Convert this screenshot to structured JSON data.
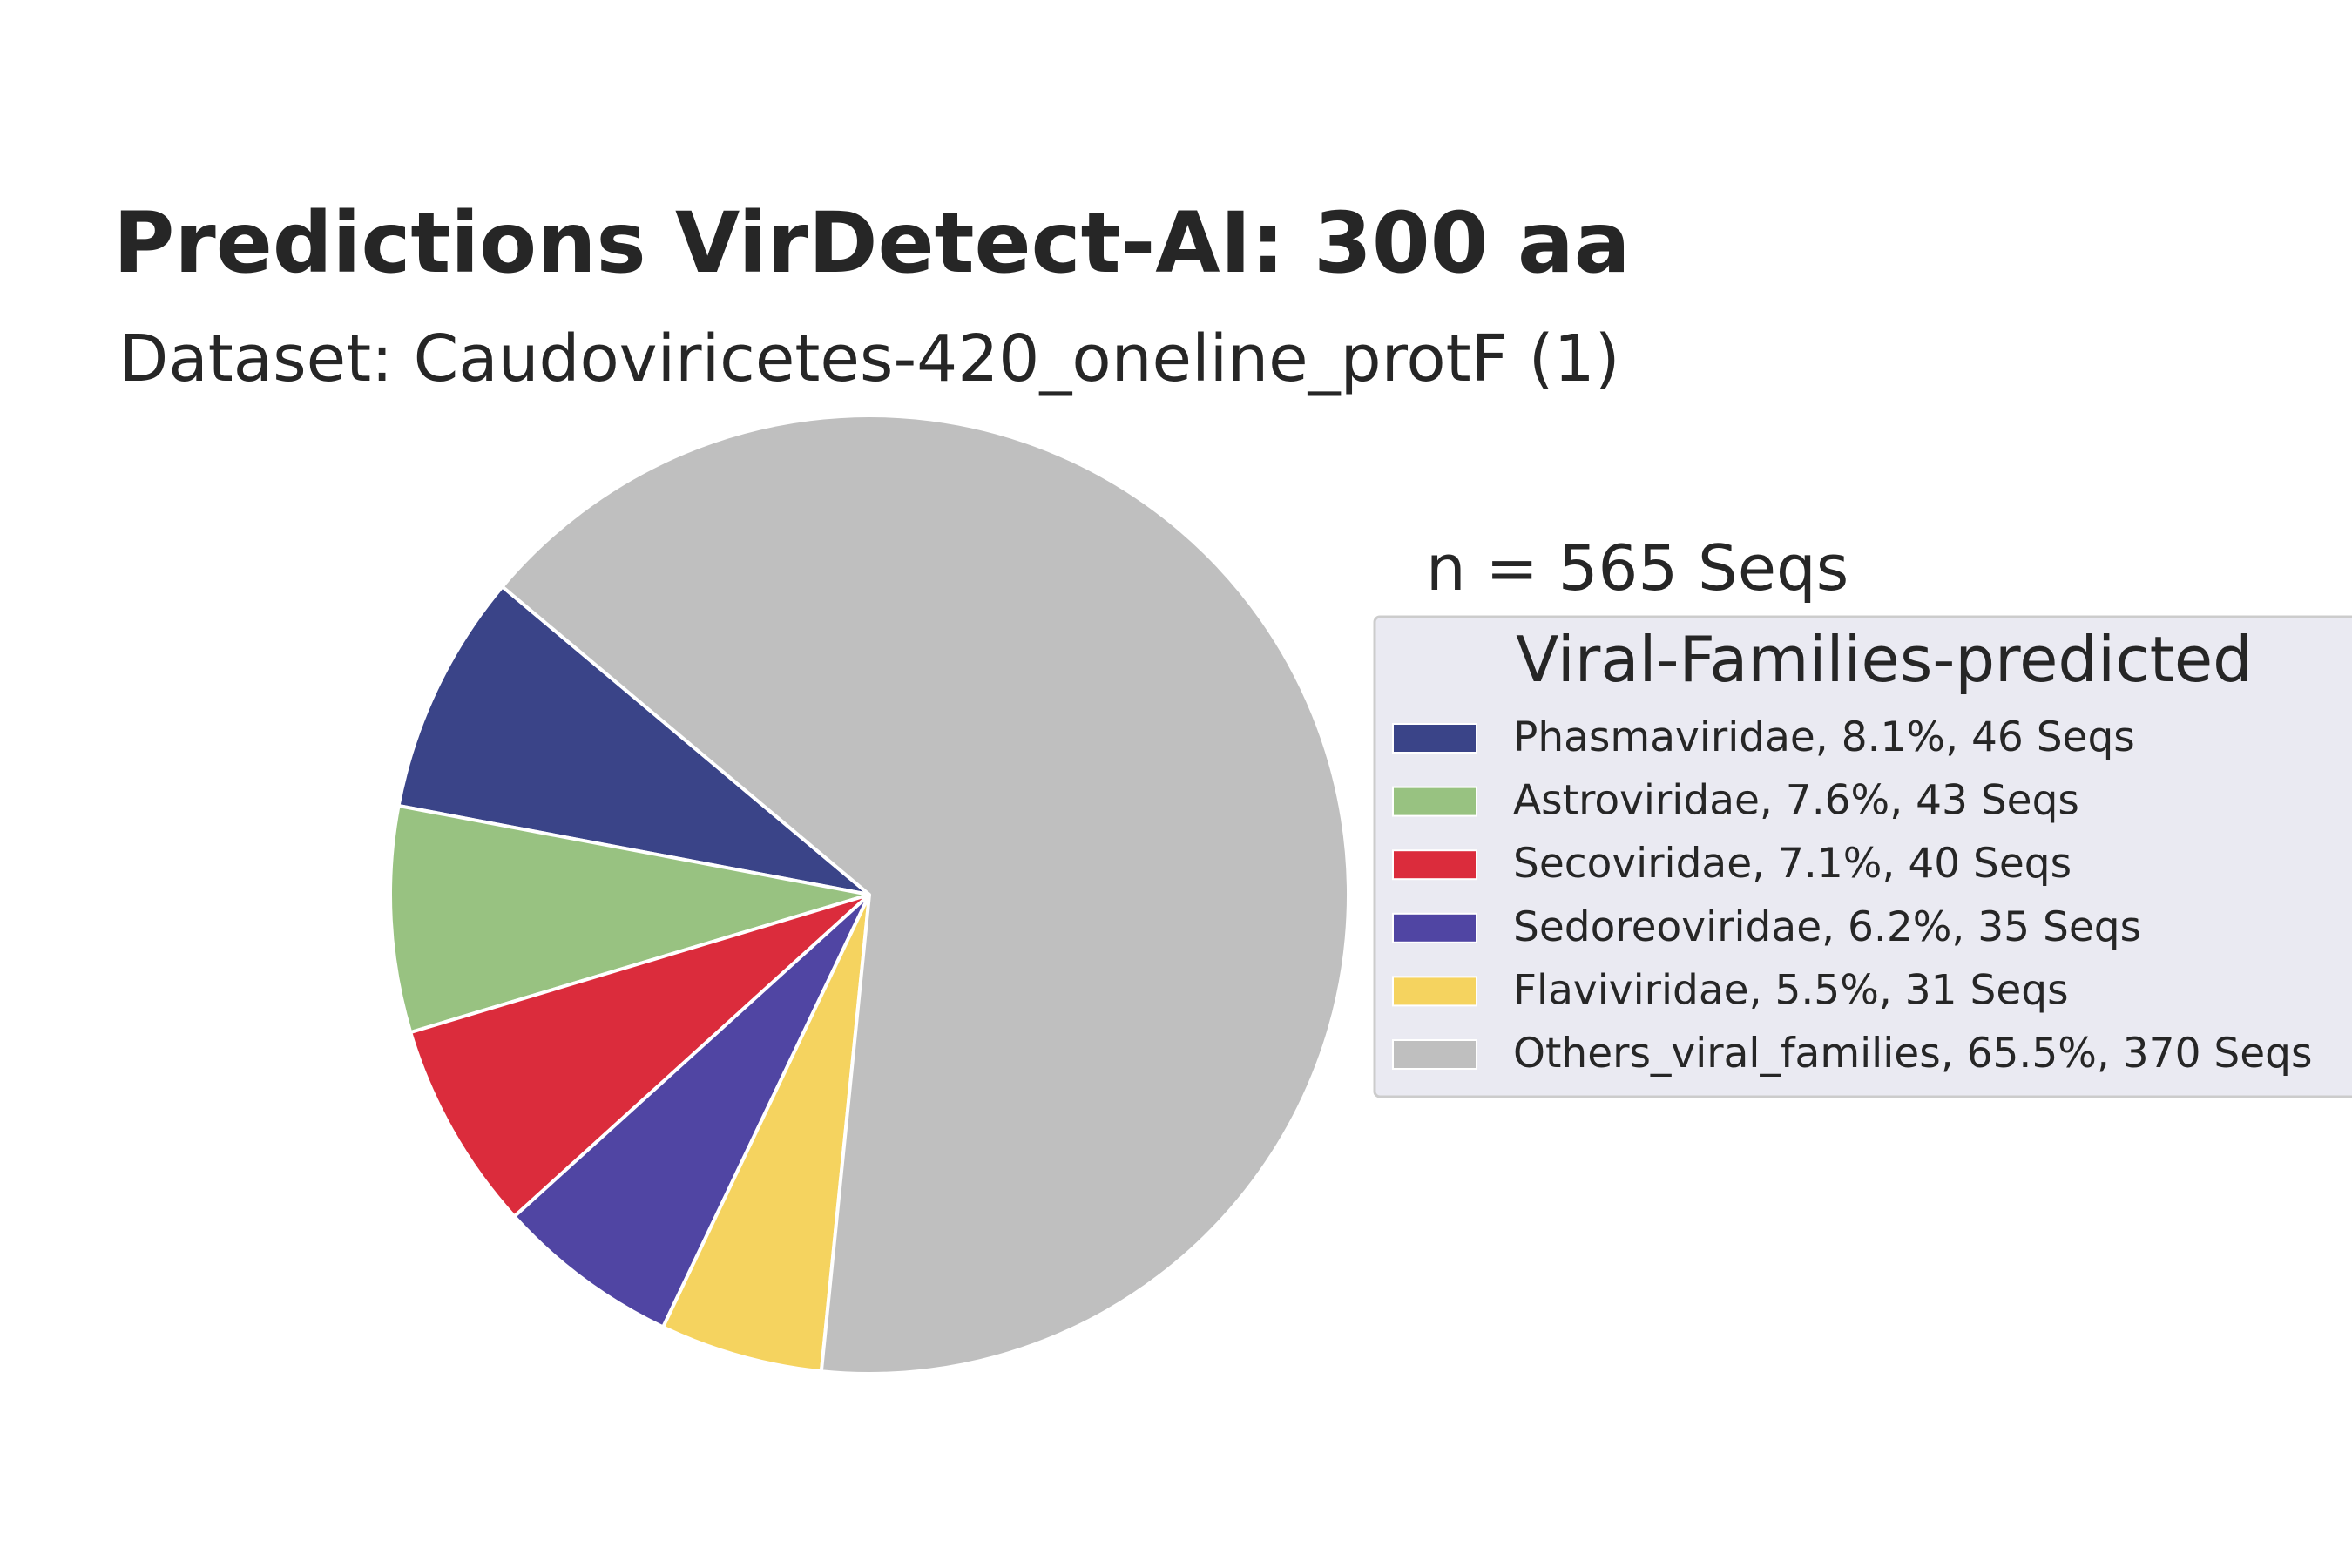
{
  "chart_data": {
    "type": "pie",
    "title": "Predictions VirDetect-AI: 300 aa",
    "subtitle": "Dataset: Caudoviricetes-420_oneline_protF (1)",
    "count_label": "n = 565 Seqs",
    "legend_title": "Viral-Families-predicted",
    "legend_placement": "right",
    "slices": [
      {
        "name": "Phasmaviridae",
        "percent": 8.1,
        "seqs": 46,
        "color": "#3a4488",
        "legend_label": "Phasmaviridae, 8.1%, 46 Seqs"
      },
      {
        "name": "Astroviridae",
        "percent": 7.6,
        "seqs": 43,
        "color": "#98c281",
        "legend_label": "Astroviridae, 7.6%, 43 Seqs"
      },
      {
        "name": "Secoviridae",
        "percent": 7.1,
        "seqs": 40,
        "color": "#db2c3c",
        "legend_label": "Secoviridae, 7.1%, 40 Seqs"
      },
      {
        "name": "Sedoreoviridae",
        "percent": 6.2,
        "seqs": 35,
        "color": "#5045a3",
        "legend_label": "Sedoreoviridae, 6.2%, 35 Seqs"
      },
      {
        "name": "Flaviviridae",
        "percent": 5.5,
        "seqs": 31,
        "color": "#f5d35f",
        "legend_label": "Flaviviridae, 5.5%, 31 Seqs"
      },
      {
        "name": "Others_viral_families",
        "percent": 65.5,
        "seqs": 370,
        "color": "#bfbfbf",
        "legend_label": "Others_viral_families, 65.5%, 370 Seqs"
      }
    ]
  }
}
